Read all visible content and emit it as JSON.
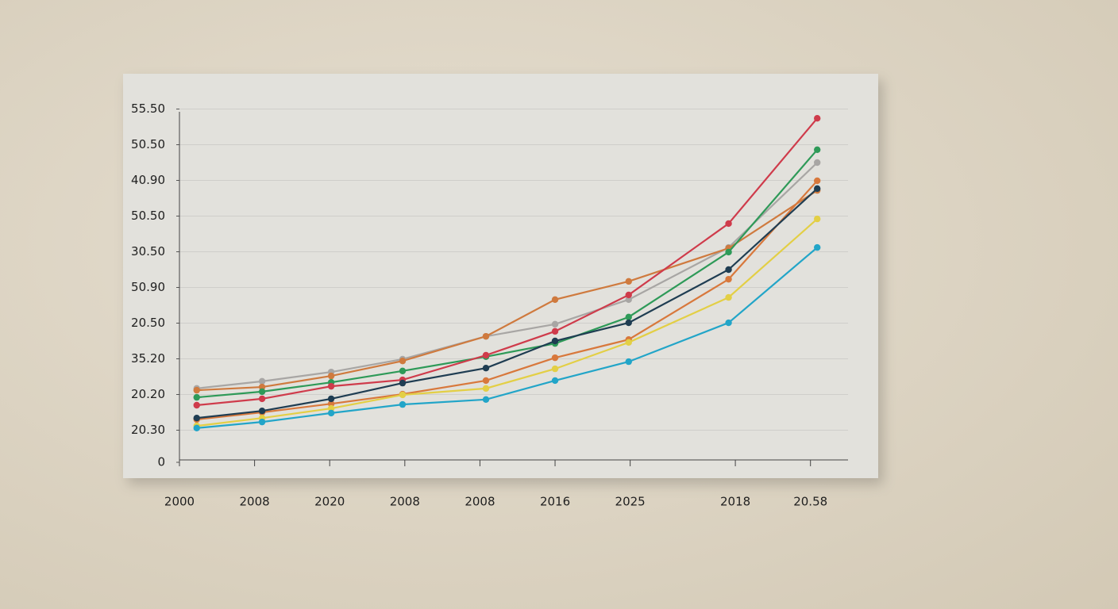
{
  "chart_data": {
    "type": "line",
    "x": [
      0.23,
      1.1,
      2.02,
      2.97,
      4.08,
      5.0,
      5.98,
      7.31,
      8.49
    ],
    "xlim": [
      0,
      8.9
    ],
    "xticks": [
      {
        "value": 0,
        "label": "2000"
      },
      {
        "value": 1,
        "label": "2008"
      },
      {
        "value": 2,
        "label": "2020"
      },
      {
        "value": 3,
        "label": "2008"
      },
      {
        "value": 4,
        "label": "2008"
      },
      {
        "value": 5,
        "label": "2016"
      },
      {
        "value": 6,
        "label": "2025"
      },
      {
        "value": 7.4,
        "label": "2018"
      },
      {
        "value": 8.4,
        "label": "20.58"
      }
    ],
    "ylim": [
      0,
      10
    ],
    "yticks": [
      0,
      {
        "value": 0.9,
        "label": "20.30"
      },
      {
        "value": 1.9,
        "label": "20.20"
      },
      {
        "value": 2.9,
        "label": "35.20"
      },
      {
        "value": 3.9,
        "label": "20.50"
      },
      {
        "value": 4.9,
        "label": "50.90"
      },
      {
        "value": 5.9,
        "label": "30.50"
      },
      {
        "value": 6.9,
        "label": "50.50"
      },
      {
        "value": 7.9,
        "label": "40.90"
      },
      {
        "value": 8.9,
        "label": "50.50"
      },
      {
        "value": 9.9,
        "label": "55.50"
      }
    ],
    "grid": true,
    "series": [
      {
        "color": "#a8a6a4",
        "values": [
          2.07,
          2.27,
          2.53,
          2.89,
          3.53,
          3.87,
          4.56,
          6.02,
          8.4
        ]
      },
      {
        "color": "#cf7a3e",
        "values": [
          2.02,
          2.11,
          2.42,
          2.84,
          3.53,
          4.56,
          5.07,
          6.0,
          7.62
        ]
      },
      {
        "color": "#2e9a58",
        "values": [
          1.82,
          1.98,
          2.24,
          2.56,
          2.96,
          3.33,
          4.07,
          5.89,
          8.76
        ]
      },
      {
        "color": "#cf3b4b",
        "values": [
          1.6,
          1.78,
          2.13,
          2.31,
          3.0,
          3.67,
          4.69,
          6.69,
          9.64
        ]
      },
      {
        "color": "#d8783c",
        "values": [
          1.2,
          1.4,
          1.64,
          1.91,
          2.29,
          2.93,
          3.44,
          5.13,
          7.89
        ]
      },
      {
        "color": "#1f3d52",
        "values": [
          1.24,
          1.44,
          1.78,
          2.22,
          2.64,
          3.4,
          3.91,
          5.4,
          7.67
        ]
      },
      {
        "color": "#e3cf45",
        "values": [
          1.02,
          1.24,
          1.51,
          1.89,
          2.07,
          2.62,
          3.36,
          4.62,
          6.82
        ]
      },
      {
        "color": "#22a5c8",
        "values": [
          0.96,
          1.13,
          1.38,
          1.62,
          1.76,
          2.29,
          2.82,
          3.91,
          6.02
        ]
      }
    ]
  }
}
